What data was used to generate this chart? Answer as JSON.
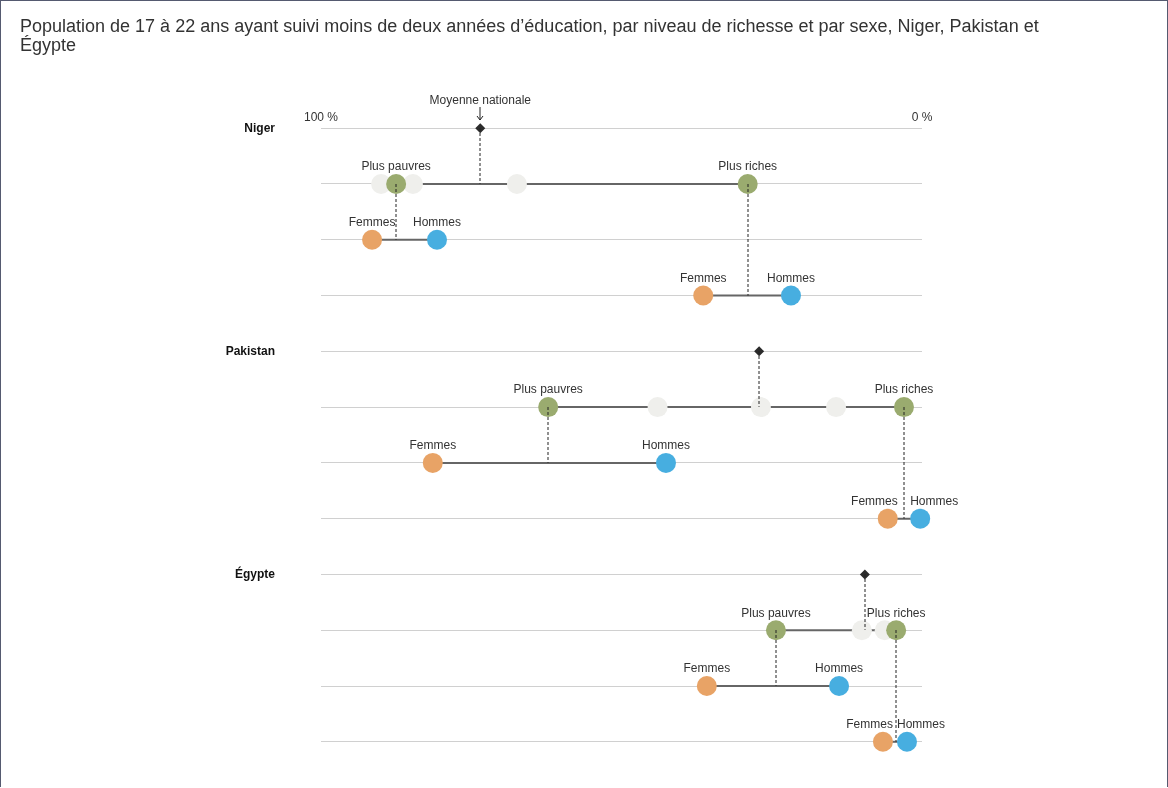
{
  "chart_data": {
    "type": "scatter",
    "title": "Population de 17 à 22 ans ayant suivi moins de deux années d’éducation, par niveau de richesse et par sexe, Niger, Pakistan et Égypte",
    "orientation": "horizontal",
    "categories": [
      "Niger",
      null,
      null,
      null,
      "Pakistan",
      null,
      null,
      null,
      "Égypte",
      null,
      null,
      null
    ],
    "xlim": [
      100,
      0
    ],
    "xticks": [
      {
        "value": 100,
        "label": "100 %"
      },
      {
        "value": 0,
        "label": "0 %"
      }
    ],
    "grid": "y",
    "legend": false,
    "series": [
      {
        "color": "#2b2b2b",
        "marker": "diamond",
        "values": [
          73.5,
          null,
          null,
          null,
          27.1,
          null,
          null,
          null,
          9.5,
          null,
          null,
          null
        ],
        "value_labels": [
          "Moyenne nationale",
          null,
          null,
          null,
          null,
          null,
          null,
          null,
          null,
          null,
          null,
          null
        ]
      },
      {
        "color": "#9aab6f",
        "marker": "circle",
        "values": [
          null,
          87.5,
          null,
          null,
          null,
          62.2,
          null,
          null,
          null,
          24.3,
          null,
          null
        ],
        "value_labels": [
          null,
          "Plus pauvres",
          null,
          null,
          null,
          "Plus pauvres",
          null,
          null,
          null,
          "Plus pauvres",
          null,
          null
        ]
      },
      {
        "color": "#9aab6f",
        "marker": "circle",
        "values": [
          null,
          29,
          null,
          null,
          null,
          3,
          null,
          null,
          null,
          4.3,
          null,
          null
        ],
        "value_labels": [
          null,
          "Plus riches",
          null,
          null,
          null,
          "Plus riches",
          null,
          null,
          null,
          "Plus riches",
          null,
          null
        ]
      },
      {
        "color": "#e8a366",
        "marker": "circle",
        "values": [
          null,
          null,
          91.5,
          36.4,
          null,
          null,
          81.4,
          5.7,
          null,
          null,
          35.8,
          6.5
        ],
        "value_labels": [
          null,
          null,
          "Femmes",
          "Femmes",
          null,
          null,
          "Femmes",
          "Femmes",
          null,
          null,
          "Femmes",
          "Femmes"
        ]
      },
      {
        "color": "#47aee0",
        "marker": "circle",
        "values": [
          null,
          null,
          80.7,
          21.8,
          null,
          null,
          42.6,
          0.3,
          null,
          null,
          13.8,
          2.5
        ],
        "value_labels": [
          null,
          null,
          "Hommes",
          "Hommes",
          null,
          null,
          "Hommes",
          "Hommes",
          null,
          null,
          "Hommes",
          "Hommes"
        ]
      },
      {
        "color": "#efefec",
        "marker": "circle",
        "values": [
          null,
          90,
          null,
          null,
          null,
          44,
          null,
          null,
          null,
          10,
          null,
          null
        ]
      },
      {
        "color": "#efefec",
        "marker": "circle",
        "values": [
          null,
          84.7,
          null,
          null,
          null,
          26.8,
          null,
          null,
          null,
          6.2,
          null,
          null
        ]
      },
      {
        "color": "#efefec",
        "marker": "circle",
        "values": [
          null,
          67.4,
          null,
          null,
          null,
          14.3,
          null,
          null,
          null,
          null,
          null,
          null
        ]
      }
    ]
  }
}
